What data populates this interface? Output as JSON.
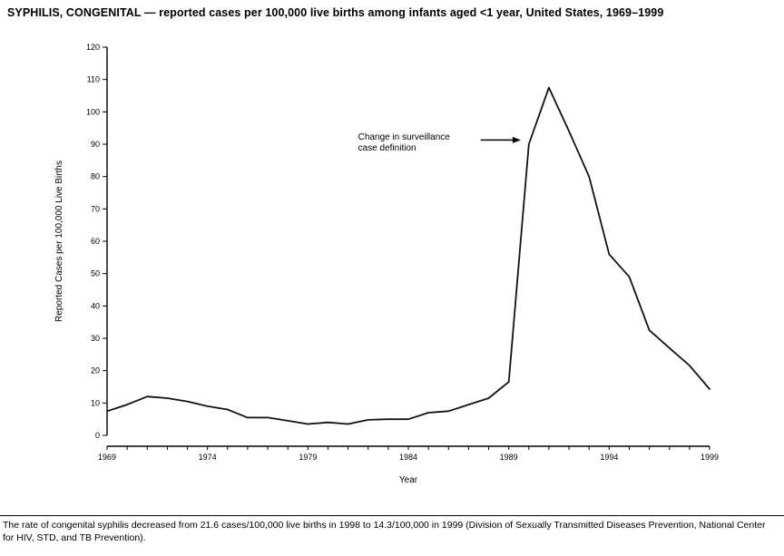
{
  "title": "SYPHILIS, CONGENITAL — reported cases per 100,000 live births among infants aged <1 year, United States, 1969–1999",
  "footnote": "The rate of congenital syphilis decreased from 21.6 cases/100,000 live births in 1998 to 14.3/100,000 in 1999 (Division of Sexually Transmitted Diseases Prevention, National Center for HIV, STD, and TB Prevention).",
  "chart_data": {
    "type": "line",
    "title": "SYPHILIS, CONGENITAL — reported cases per 100,000 live births among infants aged <1 year, United States, 1969–1999",
    "xlabel": "Year",
    "ylabel": "Reported Cases per 100,000 Live Births",
    "xlim": [
      1969,
      1999
    ],
    "ylim": [
      0,
      120
    ],
    "grid": false,
    "line_color": "#111111",
    "x": [
      1969,
      1970,
      1971,
      1972,
      1973,
      1974,
      1975,
      1976,
      1977,
      1978,
      1979,
      1980,
      1981,
      1982,
      1983,
      1984,
      1985,
      1986,
      1987,
      1988,
      1989,
      1990,
      1991,
      1992,
      1993,
      1994,
      1995,
      1996,
      1997,
      1998,
      1999
    ],
    "values": [
      7.5,
      9.5,
      12,
      11.5,
      10.5,
      9,
      8,
      5.5,
      5.5,
      4.5,
      3.5,
      4,
      3.5,
      4.8,
      5,
      5,
      7,
      7.5,
      9.5,
      11.5,
      16.5,
      90,
      107.5,
      94,
      80,
      56,
      49,
      32.5,
      27,
      21.6,
      14.3
    ],
    "y_ticks": [
      0,
      10,
      20,
      30,
      40,
      50,
      60,
      70,
      80,
      90,
      100,
      110,
      120
    ],
    "x_tick_labels": [
      1969,
      1974,
      1979,
      1984,
      1989,
      1994,
      1999
    ],
    "annotation": {
      "lines": [
        "Change in surveillance",
        "case definition"
      ],
      "text_at": [
        1981.5,
        92.5
      ],
      "arrow_from": [
        1987.6,
        91.3
      ],
      "arrow_to": [
        1989.6,
        91.3
      ]
    }
  }
}
